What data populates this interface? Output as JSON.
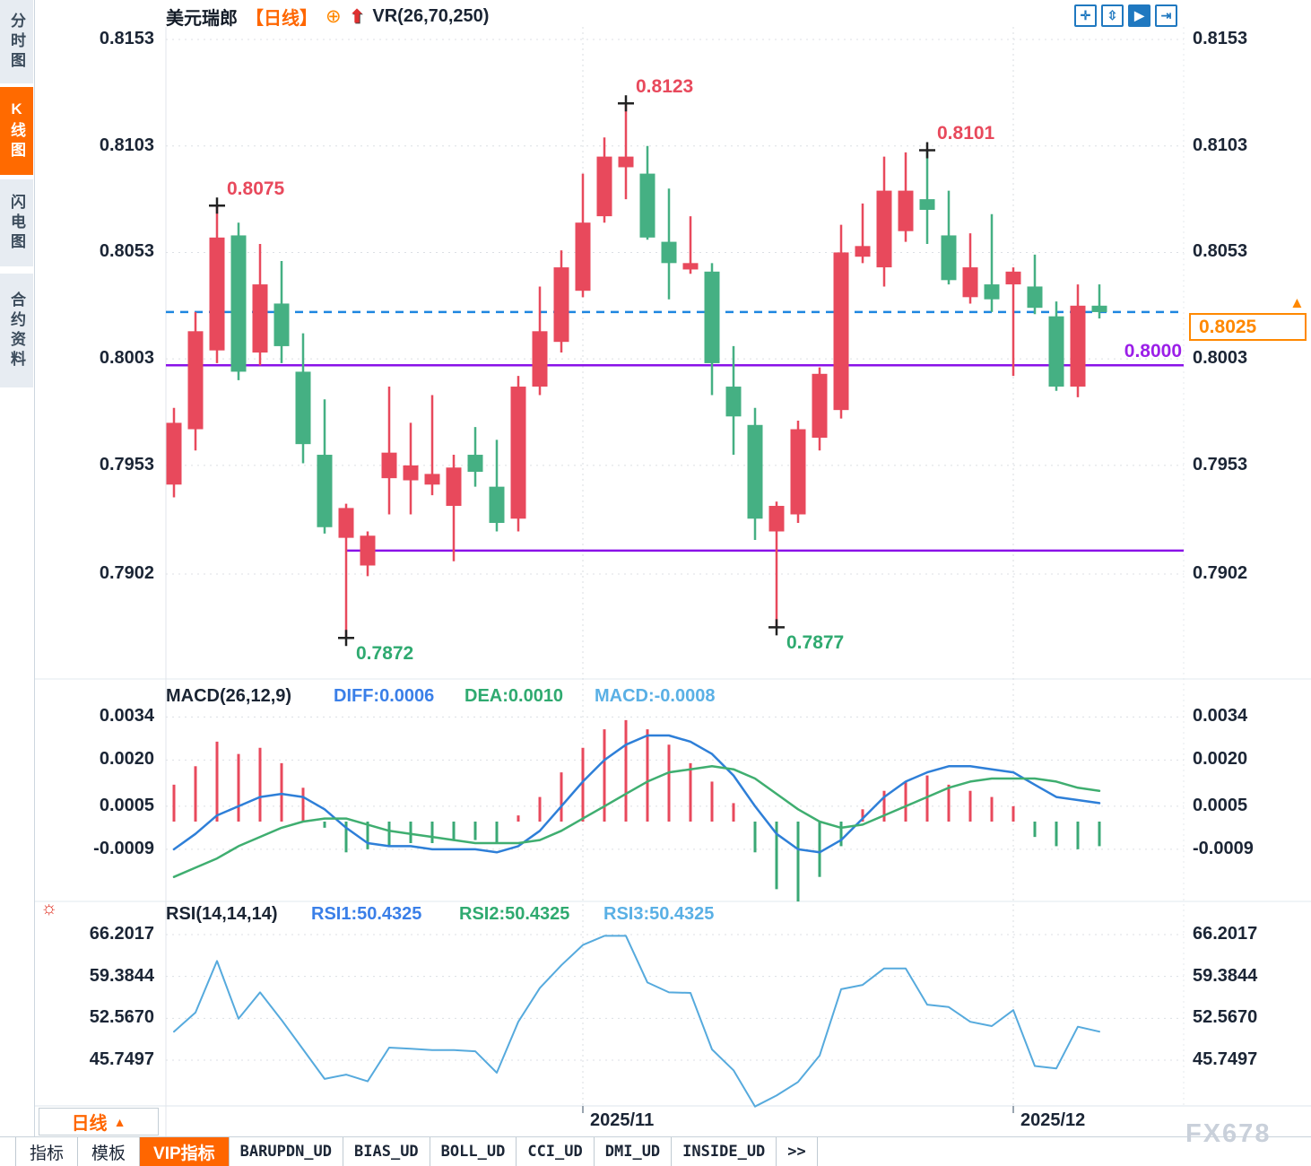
{
  "colors": {
    "up_red": "#e8495c",
    "down_green": "#45b083",
    "macd_neg_green": "#3aa875",
    "purple_line": "#8a12e8",
    "dashed_blue": "#1e86e0",
    "diff_blue": "#2e7fd8",
    "dea_green": "#3fae70",
    "rsi_blue": "#56aadd",
    "accent_orange": "#ff6600",
    "tag_orange": "#ff8800",
    "annotation_high": "#e8495c",
    "annotation_low": "#2faa70"
  },
  "sidebar": {
    "items": [
      {
        "label": "分时图",
        "active": false
      },
      {
        "label": "K线图",
        "active": true
      },
      {
        "label": "闪电图",
        "active": false
      },
      {
        "label": "合约资料",
        "active": false
      }
    ]
  },
  "header": {
    "symbol": "美元瑞郎",
    "period_tag": "【日线】",
    "plus_icon": "⊕",
    "up_arrow_icon": "⬆",
    "indicator": "VR(26,70,250)"
  },
  "toolbar_icons": [
    {
      "name": "pan-crosshair"
    },
    {
      "name": "fit-axis"
    },
    {
      "name": "pointer-active"
    },
    {
      "name": "go-latest"
    }
  ],
  "period_selector": {
    "label": "日线",
    "arrow": "▲"
  },
  "bottom_tabs": [
    {
      "label": "指标",
      "active": false,
      "mono": false
    },
    {
      "label": "模板",
      "active": false,
      "mono": false
    },
    {
      "label": "VIP指标",
      "active": true,
      "mono": false
    },
    {
      "label": "BARUPDN_UD",
      "active": false,
      "mono": true
    },
    {
      "label": "BIAS_UD",
      "active": false,
      "mono": true
    },
    {
      "label": "BOLL_UD",
      "active": false,
      "mono": true
    },
    {
      "label": "CCI_UD",
      "active": false,
      "mono": true
    },
    {
      "label": "DMI_UD",
      "active": false,
      "mono": true
    },
    {
      "label": "INSIDE_UD",
      "active": false,
      "mono": true
    },
    {
      "label": "&gt;&gt;",
      "active": false,
      "mono": true
    }
  ],
  "watermark": "FX678",
  "chart_data": [
    {
      "id": "price",
      "type": "candlestick",
      "title": "美元瑞郎 日线",
      "ylabel": "price",
      "y_ticks": [
        "0.8153",
        "0.8103",
        "0.8053",
        "0.8003",
        "0.7953",
        "0.7902"
      ],
      "ylim": [
        0.787,
        0.8155
      ],
      "grid": true,
      "x_labels": [
        {
          "text": "2025/11",
          "candle_index": 19
        },
        {
          "text": "2025/12",
          "candle_index": 39
        }
      ],
      "candles": [
        [
          0.7944,
          0.798,
          0.7938,
          0.7973
        ],
        [
          0.797,
          0.8025,
          0.796,
          0.8016
        ],
        [
          0.8007,
          0.8075,
          0.8001,
          0.806
        ],
        [
          0.8061,
          0.8067,
          0.7993,
          0.7997
        ],
        [
          0.8006,
          0.8057,
          0.8,
          0.8038
        ],
        [
          0.8029,
          0.8049,
          0.8001,
          0.8009
        ],
        [
          0.7997,
          0.8015,
          0.7954,
          0.7963
        ],
        [
          0.7958,
          0.7984,
          0.7921,
          0.7924
        ],
        [
          0.7919,
          0.7935,
          0.7872,
          0.7933
        ],
        [
          0.7906,
          0.7922,
          0.7901,
          0.792
        ],
        [
          0.7947,
          0.799,
          0.793,
          0.7959
        ],
        [
          0.7946,
          0.7973,
          0.793,
          0.7953
        ],
        [
          0.7944,
          0.7986,
          0.7939,
          0.7949
        ],
        [
          0.7934,
          0.7958,
          0.7908,
          0.7952
        ],
        [
          0.7958,
          0.7971,
          0.7943,
          0.795
        ],
        [
          0.7943,
          0.7965,
          0.7922,
          0.7926
        ],
        [
          0.7928,
          0.7995,
          0.7922,
          0.799
        ],
        [
          0.799,
          0.8037,
          0.7986,
          0.8016
        ],
        [
          0.8011,
          0.8054,
          0.8006,
          0.8046
        ],
        [
          0.8035,
          0.809,
          0.8032,
          0.8067
        ],
        [
          0.807,
          0.8107,
          0.8067,
          0.8098
        ],
        [
          0.8093,
          0.8123,
          0.8078,
          0.8098
        ],
        [
          0.809,
          0.8103,
          0.8059,
          0.806
        ],
        [
          0.8058,
          0.8083,
          0.8031,
          0.8048
        ],
        [
          0.8045,
          0.807,
          0.8043,
          0.8048
        ],
        [
          0.8044,
          0.8048,
          0.7986,
          0.8001
        ],
        [
          0.799,
          0.8009,
          0.7958,
          0.7976
        ],
        [
          0.7972,
          0.798,
          0.7918,
          0.7928
        ],
        [
          0.7922,
          0.7936,
          0.7877,
          0.7934
        ],
        [
          0.793,
          0.7974,
          0.7926,
          0.797
        ],
        [
          0.7966,
          0.7999,
          0.796,
          0.7996
        ],
        [
          0.7979,
          0.8066,
          0.7975,
          0.8053
        ],
        [
          0.8051,
          0.8076,
          0.8048,
          0.8056
        ],
        [
          0.8046,
          0.8098,
          0.8037,
          0.8082
        ],
        [
          0.8063,
          0.81,
          0.8058,
          0.8082
        ],
        [
          0.8078,
          0.8101,
          0.8057,
          0.8073
        ],
        [
          0.8061,
          0.8082,
          0.8038,
          0.804
        ],
        [
          0.8032,
          0.8062,
          0.8029,
          0.8046
        ],
        [
          0.8038,
          0.8071,
          0.8025,
          0.8031
        ],
        [
          0.8038,
          0.8046,
          0.7995,
          0.8044
        ],
        [
          0.8037,
          0.8052,
          0.8024,
          0.8027
        ],
        [
          0.8023,
          0.803,
          0.7988,
          0.799
        ],
        [
          0.799,
          0.8038,
          0.7985,
          0.8028
        ],
        [
          0.8028,
          0.8038,
          0.8022,
          0.8025
        ]
      ],
      "annotations": [
        {
          "text": "0.8075",
          "price": 0.8075,
          "candle_index": 2,
          "kind": "high"
        },
        {
          "text": "0.8123",
          "price": 0.8123,
          "candle_index": 21,
          "kind": "high"
        },
        {
          "text": "0.8101",
          "price": 0.8101,
          "candle_index": 35,
          "kind": "high"
        },
        {
          "text": "0.7872",
          "price": 0.7872,
          "candle_index": 8,
          "kind": "low"
        },
        {
          "text": "0.7877",
          "price": 0.7877,
          "candle_index": 28,
          "kind": "low"
        }
      ],
      "hlines": [
        {
          "price": 0.8,
          "label": "0.8000",
          "from_candle": 0
        },
        {
          "price": 0.7913,
          "label": "",
          "from_candle": 8
        }
      ],
      "current_price": {
        "value": 0.8025,
        "label": "0.8025"
      }
    },
    {
      "id": "macd",
      "type": "bar",
      "title": "MACD(26,12,9)",
      "legend": [
        "DIFF:0.0006",
        "DEA:0.0010",
        "MACD:-0.0008"
      ],
      "y_ticks": [
        "0.0034",
        "0.0020",
        "0.0005",
        "-0.0009"
      ],
      "hist": [
        0.0012,
        0.0018,
        0.0026,
        0.0022,
        0.0024,
        0.0019,
        0.0011,
        -0.0002,
        -0.001,
        -0.0009,
        -0.0008,
        -0.0007,
        -0.0007,
        -0.0006,
        -0.0006,
        -0.0007,
        0.0002,
        0.0008,
        0.0016,
        0.0024,
        0.003,
        0.0033,
        0.003,
        0.0025,
        0.0019,
        0.0013,
        0.0006,
        -0.001,
        -0.0022,
        -0.0026,
        -0.0018,
        -0.0008,
        0.0004,
        0.001,
        0.0013,
        0.0015,
        0.0012,
        0.001,
        0.0008,
        0.0005,
        -0.0005,
        -0.0008,
        -0.0009,
        -0.0008
      ],
      "diff": [
        -0.0009,
        -0.0004,
        0.0002,
        0.0005,
        0.0008,
        0.0009,
        0.0008,
        0.0004,
        -0.0002,
        -0.0007,
        -0.0008,
        -0.0008,
        -0.0009,
        -0.0009,
        -0.0009,
        -0.001,
        -0.0008,
        -0.0003,
        0.0005,
        0.0013,
        0.002,
        0.0025,
        0.0028,
        0.0028,
        0.0026,
        0.0022,
        0.0015,
        0.0005,
        -0.0004,
        -0.0009,
        -0.001,
        -0.0006,
        0.0001,
        0.0008,
        0.0013,
        0.0016,
        0.0018,
        0.0018,
        0.0017,
        0.0016,
        0.0012,
        0.0008,
        0.0007,
        0.0006
      ],
      "dea": [
        -0.0018,
        -0.0015,
        -0.0012,
        -0.0008,
        -0.0005,
        -0.0002,
        0.0,
        0.0001,
        0.0001,
        -0.0001,
        -0.0003,
        -0.0004,
        -0.0005,
        -0.0006,
        -0.0007,
        -0.0007,
        -0.0007,
        -0.0006,
        -0.0003,
        0.0001,
        0.0005,
        0.0009,
        0.0013,
        0.0016,
        0.0017,
        0.0018,
        0.0017,
        0.0014,
        0.0009,
        0.0004,
        0.0,
        -0.0002,
        -0.0001,
        0.0002,
        0.0005,
        0.0008,
        0.0011,
        0.0013,
        0.0014,
        0.0014,
        0.0014,
        0.0013,
        0.0011,
        0.001
      ]
    },
    {
      "id": "rsi",
      "type": "line",
      "title": "RSI(14,14,14)",
      "legend": [
        "RSI1:50.4325",
        "RSI2:50.4325",
        "RSI3:50.4325"
      ],
      "y_ticks": [
        "66.2017",
        "59.3844",
        "52.5670",
        "45.7497"
      ],
      "values": [
        50.4,
        53.5,
        61.9,
        52.5,
        56.8,
        52.3,
        47.5,
        42.7,
        43.4,
        42.3,
        47.8,
        47.6,
        47.4,
        47.4,
        47.2,
        43.7,
        52.0,
        57.5,
        61.2,
        64.5,
        66.0,
        66.0,
        58.4,
        56.8,
        56.7,
        47.5,
        44.1,
        38.2,
        40.0,
        42.2,
        46.5,
        57.3,
        58.0,
        60.7,
        60.7,
        54.8,
        54.4,
        52.0,
        51.3,
        53.9,
        44.8,
        44.4,
        51.2,
        50.4
      ]
    }
  ]
}
